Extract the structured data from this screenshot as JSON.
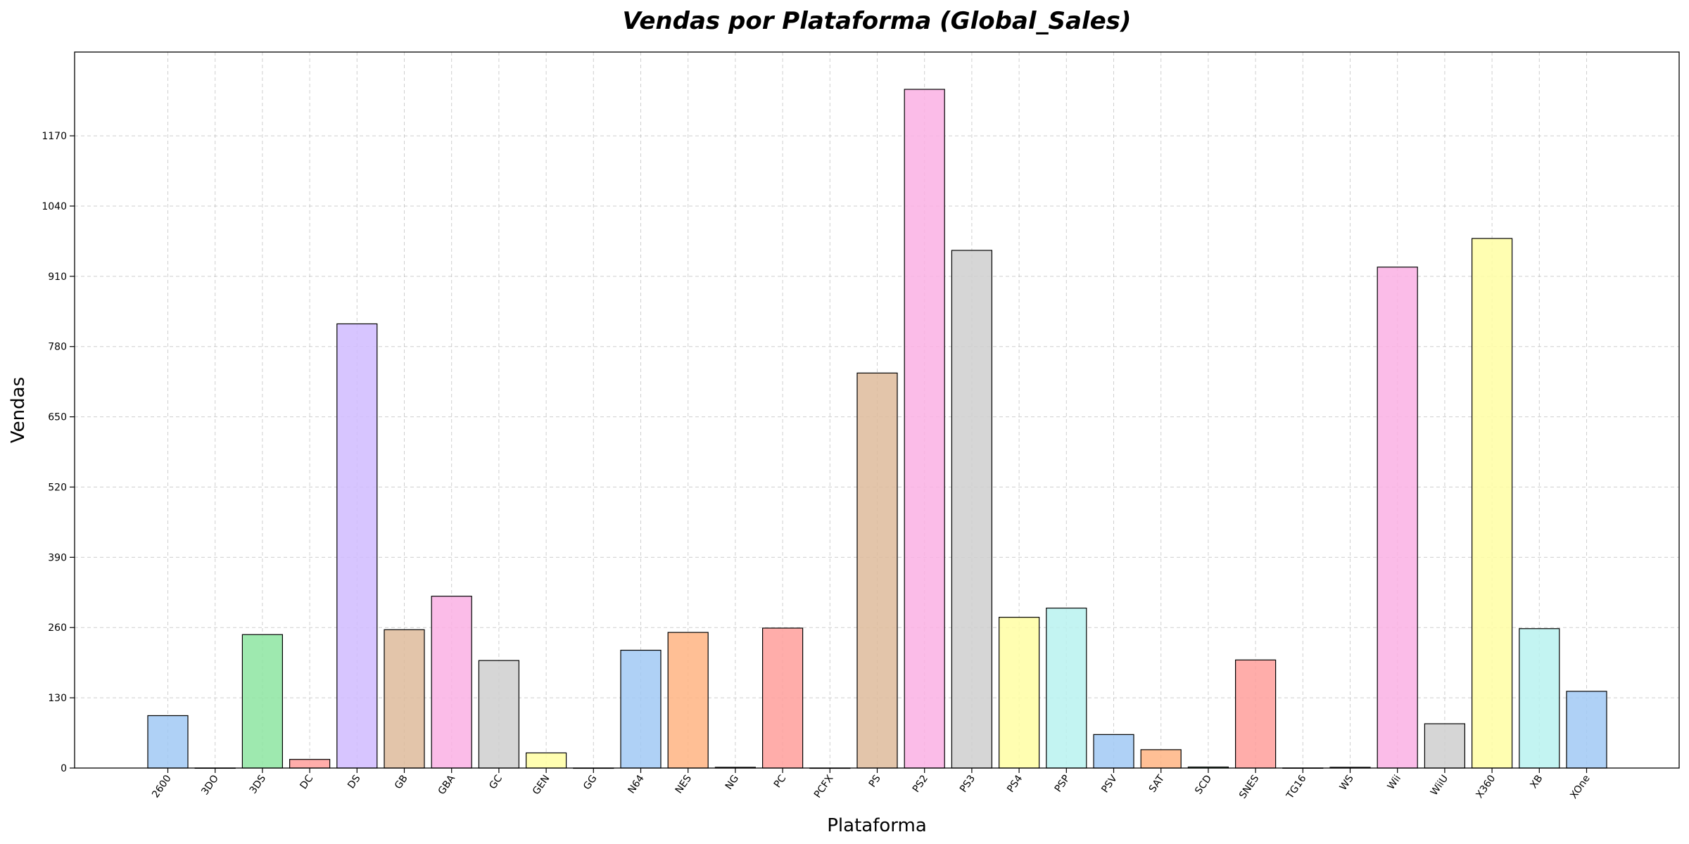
{
  "chart_data": {
    "type": "bar",
    "title": "Vendas por Plataforma (Global_Sales)",
    "xlabel": "Plataforma",
    "ylabel": "Vendas",
    "ylim": [
      0,
      1325
    ],
    "yticks": [
      0,
      130,
      260,
      390,
      520,
      650,
      780,
      910,
      1040,
      1170
    ],
    "grid": true,
    "categories": [
      "2600",
      "3DO",
      "3DS",
      "DC",
      "DS",
      "GB",
      "GBA",
      "GC",
      "GEN",
      "GG",
      "N64",
      "NES",
      "NG",
      "PC",
      "PCFX",
      "PS",
      "PS2",
      "PS3",
      "PS4",
      "PSP",
      "PSV",
      "SAT",
      "SCD",
      "SNES",
      "TG16",
      "WS",
      "Wii",
      "WiiU",
      "X360",
      "XB",
      "XOne"
    ],
    "values": [
      97,
      0.1,
      247,
      16,
      822,
      256,
      318,
      199,
      28,
      0.04,
      218,
      251,
      1.4,
      259,
      0.03,
      731,
      1256,
      958,
      279,
      296,
      62,
      34,
      1.9,
      200,
      0.16,
      1.4,
      927,
      82,
      980,
      258,
      142
    ],
    "colors": [
      "#a1c9f4",
      "#ffb482",
      "#8de5a1",
      "#ff9f9b",
      "#d0bbff",
      "#debb9b",
      "#fab0e4",
      "#cfcfcf",
      "#fffea3",
      "#b9f2f0"
    ]
  }
}
